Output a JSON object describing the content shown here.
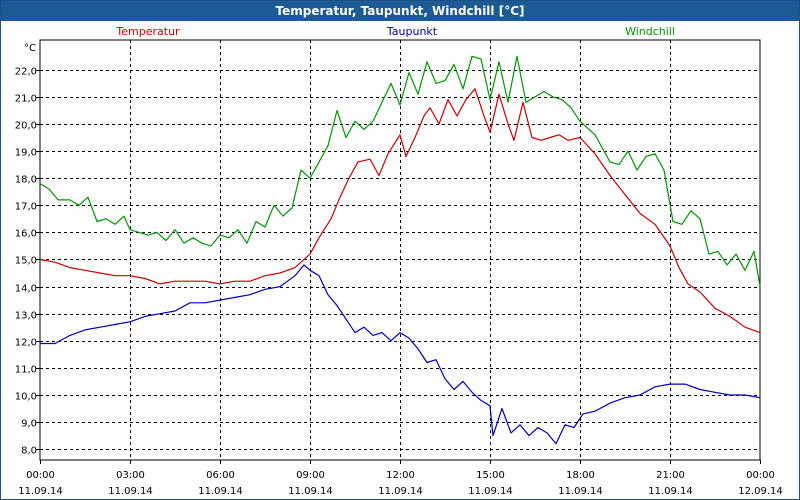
{
  "window": {
    "title": "Temperatur, Taupunkt, Windchill [°C]"
  },
  "chart_data": {
    "type": "line",
    "title": "Temperatur, Taupunkt, Windchill [°C]",
    "ylabel": "°C",
    "ylim": [
      7.6,
      23.1
    ],
    "xlim": [
      0,
      24
    ],
    "grid": true,
    "yticks": [
      8,
      9,
      10,
      11,
      12,
      13,
      14,
      15,
      16,
      17,
      18,
      19,
      20,
      21,
      22
    ],
    "ytick_labels": [
      "8,0",
      "9,0",
      "10,0",
      "11,0",
      "12,0",
      "13,0",
      "14,0",
      "15,0",
      "16,0",
      "17,0",
      "18,0",
      "19,0",
      "20,0",
      "21,0",
      "22,0"
    ],
    "xticks": [
      {
        "x": 0,
        "time": "00:00",
        "date": "11.09.14"
      },
      {
        "x": 3,
        "time": "03:00",
        "date": "11.09.14"
      },
      {
        "x": 6,
        "time": "06:00",
        "date": "11.09.14"
      },
      {
        "x": 9,
        "time": "09:00",
        "date": "11.09.14"
      },
      {
        "x": 12,
        "time": "12:00",
        "date": "11.09.14"
      },
      {
        "x": 15,
        "time": "15:00",
        "date": "11.09.14"
      },
      {
        "x": 18,
        "time": "18:00",
        "date": "11.09.14"
      },
      {
        "x": 21,
        "time": "21:00",
        "date": "11.09.14"
      },
      {
        "x": 24,
        "time": "00:00",
        "date": "12.09.14"
      }
    ],
    "series": [
      {
        "name": "Temperatur",
        "color": "#cc0000",
        "legend_position": "top-left",
        "points": [
          [
            0,
            15.0
          ],
          [
            0.5,
            14.9
          ],
          [
            1,
            14.7
          ],
          [
            1.5,
            14.6
          ],
          [
            2,
            14.5
          ],
          [
            2.5,
            14.4
          ],
          [
            3,
            14.4
          ],
          [
            3.5,
            14.3
          ],
          [
            4,
            14.1
          ],
          [
            4.5,
            14.2
          ],
          [
            5,
            14.2
          ],
          [
            5.5,
            14.2
          ],
          [
            6,
            14.1
          ],
          [
            6.5,
            14.2
          ],
          [
            7,
            14.2
          ],
          [
            7.5,
            14.4
          ],
          [
            8,
            14.5
          ],
          [
            8.5,
            14.7
          ],
          [
            9,
            15.2
          ],
          [
            9.3,
            15.8
          ],
          [
            9.7,
            16.5
          ],
          [
            10,
            17.3
          ],
          [
            10.3,
            18.0
          ],
          [
            10.6,
            18.6
          ],
          [
            11,
            18.7
          ],
          [
            11.3,
            18.1
          ],
          [
            11.6,
            18.9
          ],
          [
            12,
            19.6
          ],
          [
            12.2,
            18.8
          ],
          [
            12.5,
            19.5
          ],
          [
            12.8,
            20.3
          ],
          [
            13,
            20.6
          ],
          [
            13.3,
            20.0
          ],
          [
            13.6,
            20.9
          ],
          [
            13.9,
            20.3
          ],
          [
            14.2,
            20.9
          ],
          [
            14.5,
            21.3
          ],
          [
            14.8,
            20.3
          ],
          [
            15.0,
            19.7
          ],
          [
            15.3,
            21.1
          ],
          [
            15.6,
            20.0
          ],
          [
            15.8,
            19.4
          ],
          [
            16.1,
            20.8
          ],
          [
            16.4,
            19.5
          ],
          [
            16.7,
            19.4
          ],
          [
            17,
            19.5
          ],
          [
            17.3,
            19.6
          ],
          [
            17.6,
            19.4
          ],
          [
            18,
            19.5
          ],
          [
            18.5,
            18.9
          ],
          [
            19,
            18.1
          ],
          [
            19.5,
            17.4
          ],
          [
            20,
            16.7
          ],
          [
            20.5,
            16.3
          ],
          [
            21,
            15.5
          ],
          [
            21.3,
            14.7
          ],
          [
            21.6,
            14.1
          ],
          [
            22,
            13.8
          ],
          [
            22.5,
            13.2
          ],
          [
            23,
            12.9
          ],
          [
            23.5,
            12.5
          ],
          [
            24,
            12.3
          ]
        ]
      },
      {
        "name": "Taupunkt",
        "color": "#0000bb",
        "legend_position": "top-center",
        "points": [
          [
            0,
            11.9
          ],
          [
            0.5,
            11.9
          ],
          [
            1,
            12.2
          ],
          [
            1.5,
            12.4
          ],
          [
            2,
            12.5
          ],
          [
            2.5,
            12.6
          ],
          [
            3,
            12.7
          ],
          [
            3.5,
            12.9
          ],
          [
            4,
            13.0
          ],
          [
            4.5,
            13.1
          ],
          [
            5,
            13.4
          ],
          [
            5.5,
            13.4
          ],
          [
            6,
            13.5
          ],
          [
            6.5,
            13.6
          ],
          [
            7,
            13.7
          ],
          [
            7.5,
            13.9
          ],
          [
            8,
            14.0
          ],
          [
            8.5,
            14.4
          ],
          [
            8.8,
            14.8
          ],
          [
            9,
            14.6
          ],
          [
            9.3,
            14.4
          ],
          [
            9.6,
            13.7
          ],
          [
            9.9,
            13.3
          ],
          [
            10.2,
            12.8
          ],
          [
            10.5,
            12.3
          ],
          [
            10.8,
            12.5
          ],
          [
            11.1,
            12.2
          ],
          [
            11.4,
            12.3
          ],
          [
            11.7,
            12.0
          ],
          [
            12,
            12.3
          ],
          [
            12.3,
            12.1
          ],
          [
            12.6,
            11.7
          ],
          [
            12.9,
            11.2
          ],
          [
            13.2,
            11.3
          ],
          [
            13.5,
            10.6
          ],
          [
            13.8,
            10.2
          ],
          [
            14.1,
            10.5
          ],
          [
            14.4,
            10.1
          ],
          [
            14.7,
            9.8
          ],
          [
            15.0,
            9.6
          ],
          [
            15.1,
            8.5
          ],
          [
            15.4,
            9.5
          ],
          [
            15.7,
            8.6
          ],
          [
            16,
            8.9
          ],
          [
            16.3,
            8.5
          ],
          [
            16.6,
            8.8
          ],
          [
            16.9,
            8.6
          ],
          [
            17.2,
            8.2
          ],
          [
            17.5,
            8.9
          ],
          [
            17.8,
            8.8
          ],
          [
            18.1,
            9.3
          ],
          [
            18.5,
            9.4
          ],
          [
            19,
            9.7
          ],
          [
            19.5,
            9.9
          ],
          [
            20,
            10.0
          ],
          [
            20.5,
            10.3
          ],
          [
            21,
            10.4
          ],
          [
            21.5,
            10.4
          ],
          [
            22,
            10.2
          ],
          [
            22.5,
            10.1
          ],
          [
            23,
            10.0
          ],
          [
            23.5,
            10.0
          ],
          [
            24,
            9.9
          ]
        ]
      },
      {
        "name": "Windchill",
        "color": "#009900",
        "legend_position": "top-right",
        "points": [
          [
            0,
            17.8
          ],
          [
            0.3,
            17.6
          ],
          [
            0.6,
            17.2
          ],
          [
            1,
            17.2
          ],
          [
            1.3,
            17.0
          ],
          [
            1.6,
            17.3
          ],
          [
            1.9,
            16.4
          ],
          [
            2.2,
            16.5
          ],
          [
            2.5,
            16.3
          ],
          [
            2.8,
            16.6
          ],
          [
            3.0,
            16.1
          ],
          [
            3.3,
            16.0
          ],
          [
            3.6,
            15.9
          ],
          [
            3.9,
            16.0
          ],
          [
            4.2,
            15.7
          ],
          [
            4.5,
            16.1
          ],
          [
            4.8,
            15.6
          ],
          [
            5.1,
            15.8
          ],
          [
            5.4,
            15.6
          ],
          [
            5.7,
            15.5
          ],
          [
            6.0,
            15.9
          ],
          [
            6.3,
            15.8
          ],
          [
            6.6,
            16.1
          ],
          [
            6.9,
            15.6
          ],
          [
            7.2,
            16.4
          ],
          [
            7.5,
            16.2
          ],
          [
            7.8,
            17.0
          ],
          [
            8.1,
            16.6
          ],
          [
            8.4,
            16.9
          ],
          [
            8.7,
            18.3
          ],
          [
            9.0,
            18.0
          ],
          [
            9.3,
            18.6
          ],
          [
            9.6,
            19.2
          ],
          [
            9.9,
            20.5
          ],
          [
            10.2,
            19.5
          ],
          [
            10.5,
            20.1
          ],
          [
            10.8,
            19.8
          ],
          [
            11.1,
            20.1
          ],
          [
            11.4,
            20.8
          ],
          [
            11.7,
            21.5
          ],
          [
            12.0,
            20.7
          ],
          [
            12.3,
            21.9
          ],
          [
            12.6,
            21.1
          ],
          [
            12.9,
            22.3
          ],
          [
            13.2,
            21.5
          ],
          [
            13.5,
            21.6
          ],
          [
            13.8,
            22.2
          ],
          [
            14.1,
            21.3
          ],
          [
            14.4,
            22.5
          ],
          [
            14.7,
            22.4
          ],
          [
            15.0,
            20.9
          ],
          [
            15.3,
            22.3
          ],
          [
            15.6,
            20.8
          ],
          [
            15.9,
            22.5
          ],
          [
            16.2,
            20.8
          ],
          [
            16.5,
            21.0
          ],
          [
            16.8,
            21.2
          ],
          [
            17.1,
            21.0
          ],
          [
            17.4,
            20.9
          ],
          [
            17.7,
            20.6
          ],
          [
            18,
            20.1
          ],
          [
            18.5,
            19.6
          ],
          [
            19,
            18.6
          ],
          [
            19.3,
            18.5
          ],
          [
            19.6,
            19.0
          ],
          [
            19.9,
            18.3
          ],
          [
            20.2,
            18.8
          ],
          [
            20.5,
            18.9
          ],
          [
            20.8,
            18.3
          ],
          [
            21.1,
            16.4
          ],
          [
            21.4,
            16.3
          ],
          [
            21.7,
            16.8
          ],
          [
            22.0,
            16.5
          ],
          [
            22.3,
            15.2
          ],
          [
            22.6,
            15.3
          ],
          [
            22.9,
            14.8
          ],
          [
            23.2,
            15.2
          ],
          [
            23.5,
            14.6
          ],
          [
            23.8,
            15.3
          ],
          [
            24,
            14.0
          ]
        ]
      }
    ]
  }
}
